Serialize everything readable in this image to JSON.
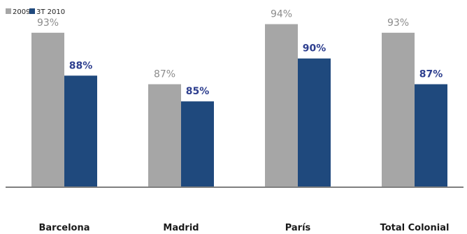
{
  "chart_data": {
    "type": "bar",
    "categories": [
      "Barcelona",
      "Madrid",
      "París",
      "Total Colonial"
    ],
    "series": [
      {
        "name": "2009",
        "values": [
          93,
          87,
          94,
          93
        ],
        "labels": [
          "93%",
          "87%",
          "94%",
          "93%"
        ],
        "color": "#a6a6a6"
      },
      {
        "name": "3T 2010",
        "values": [
          88,
          85,
          90,
          87
        ],
        "labels": [
          "88%",
          "85%",
          "90%",
          "87%"
        ],
        "color": "#1f497d"
      }
    ],
    "unit": "%",
    "ylim": [
      75,
      96
    ],
    "grid": false,
    "legend": "top-left",
    "title": "",
    "xlabel": "",
    "ylabel": ""
  }
}
